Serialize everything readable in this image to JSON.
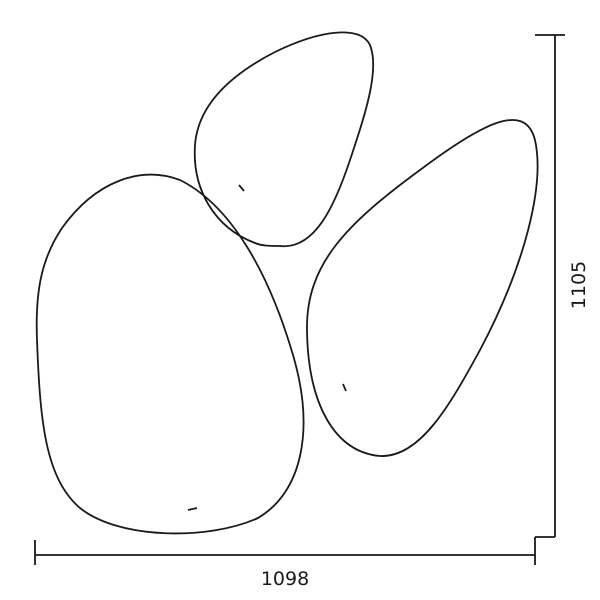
{
  "dimensions": {
    "width_label": "1098",
    "height_label": "1105"
  },
  "colors": {
    "line": "#1a1a1a",
    "background": "#ffffff"
  }
}
